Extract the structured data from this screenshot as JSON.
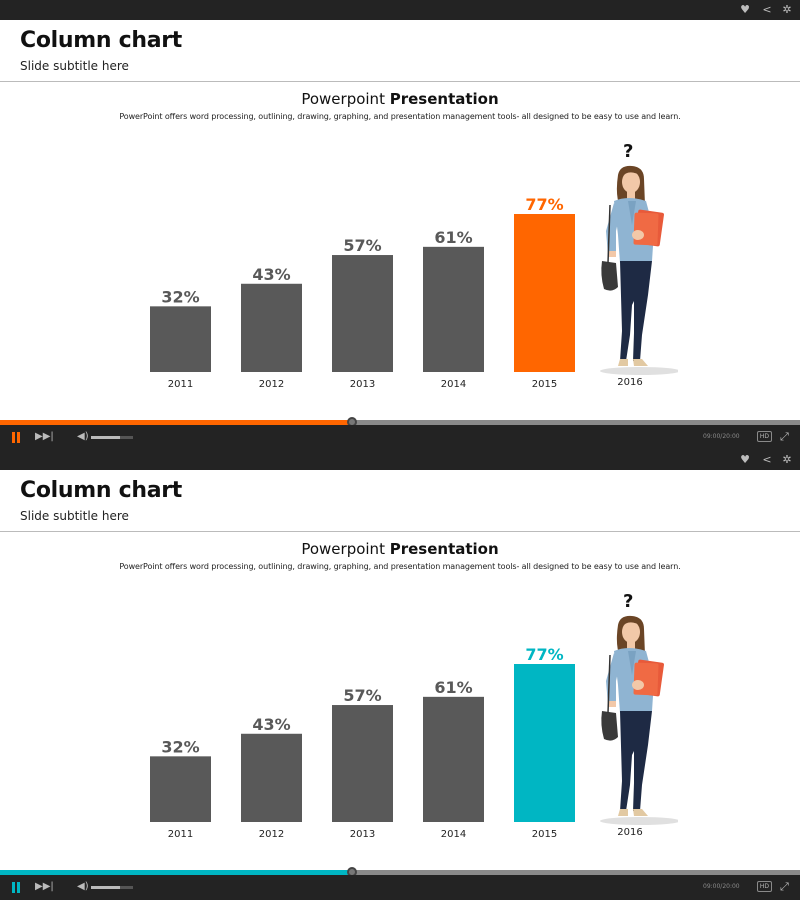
{
  "slide": {
    "title": "Column chart",
    "subtitle": "Slide subtitle here",
    "pres_title_normal": "Powerpoint ",
    "pres_title_bold": "Presentation",
    "description": "PowerPoint offers word processing, outlining, drawing, graphing, and presentation management tools- all designed to be easy to use and learn.",
    "question_mark": "?",
    "extra_category": "2016"
  },
  "player": {
    "time": "09:00/20:00",
    "hd_label": "HD",
    "icons": [
      "heart-icon",
      "share-icon",
      "gear-icon",
      "pause-icon",
      "skip-icon",
      "volume-icon",
      "fullscreen-icon"
    ],
    "progress_fraction": 0.44,
    "volume_fraction": 0.7
  },
  "colors": {
    "bar_default": "#595959",
    "label_default": "#595959",
    "accent_top": "#ff6600",
    "accent_bottom": "#00b6c3"
  },
  "chart_data": [
    {
      "type": "bar",
      "categories": [
        "2011",
        "2012",
        "2013",
        "2014",
        "2015"
      ],
      "values": [
        32,
        43,
        57,
        61,
        77
      ],
      "labels": [
        "32%",
        "43%",
        "57%",
        "61%",
        "77%"
      ],
      "highlight_index": 4,
      "highlight_color": "#ff6600",
      "ylim": [
        0,
        100
      ]
    },
    {
      "type": "bar",
      "categories": [
        "2011",
        "2012",
        "2013",
        "2014",
        "2015"
      ],
      "values": [
        32,
        43,
        57,
        61,
        77
      ],
      "labels": [
        "32%",
        "43%",
        "57%",
        "61%",
        "77%"
      ],
      "highlight_index": 4,
      "highlight_color": "#00b6c3",
      "ylim": [
        0,
        100
      ]
    }
  ]
}
